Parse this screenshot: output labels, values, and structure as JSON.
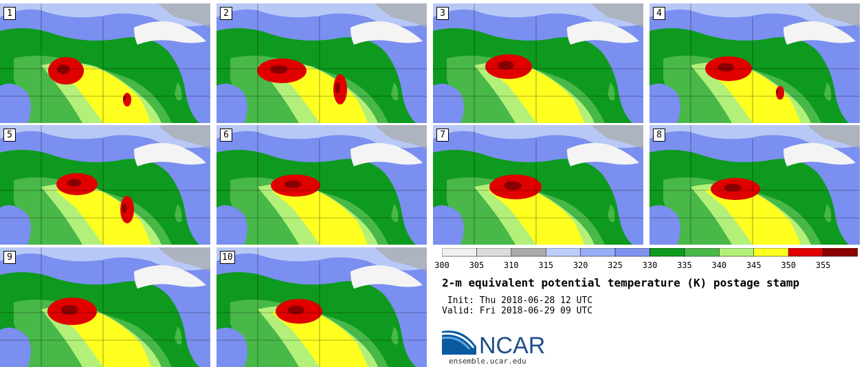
{
  "panels": [
    {
      "label": "1"
    },
    {
      "label": "2"
    },
    {
      "label": "3"
    },
    {
      "label": "4"
    },
    {
      "label": "5"
    },
    {
      "label": "6"
    },
    {
      "label": "7"
    },
    {
      "label": "8"
    },
    {
      "label": "9"
    },
    {
      "label": "10"
    }
  ],
  "colorbar": {
    "ticks": [
      "300",
      "305",
      "310",
      "315",
      "320",
      "325",
      "330",
      "335",
      "340",
      "345",
      "350",
      "355"
    ],
    "colors": [
      "#f0f0f0",
      "#dcdcdc",
      "#aaaaaa",
      "#bccdf8",
      "#98adf5",
      "#7e93ee",
      "#0e9a1e",
      "#48b848",
      "#b2f07a",
      "#ffff20",
      "#e00000",
      "#8b0000"
    ]
  },
  "title": "2-m equivalent potential temperature (K) postage stamp",
  "init": " Init: Thu 2018-06-28 12 UTC",
  "valid": "Valid: Fri 2018-06-29 09 UTC",
  "logo": {
    "text": "NCAR",
    "site": "ensemble.ucar.edu"
  }
}
